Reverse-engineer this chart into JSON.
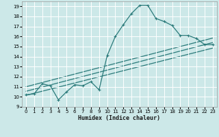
{
  "xlabel": "Humidex (Indice chaleur)",
  "bg_color": "#cce8e8",
  "grid_color": "#ffffff",
  "line_color": "#2a7a7a",
  "x_data": [
    0,
    1,
    2,
    3,
    4,
    5,
    6,
    7,
    8,
    9,
    10,
    11,
    12,
    13,
    14,
    15,
    16,
    17,
    18,
    19,
    20,
    21,
    22,
    23
  ],
  "y_main": [
    10.2,
    10.3,
    11.3,
    11.1,
    9.7,
    10.5,
    11.2,
    11.1,
    11.5,
    10.7,
    14.1,
    16.0,
    17.2,
    18.3,
    19.1,
    19.1,
    17.8,
    17.5,
    17.1,
    16.1,
    16.1,
    15.8,
    15.2,
    15.2
  ],
  "reg_lines": [
    [
      [
        0,
        23
      ],
      [
        10.15,
        14.85
      ]
    ],
    [
      [
        0,
        23
      ],
      [
        10.55,
        15.4
      ]
    ],
    [
      [
        0,
        23
      ],
      [
        11.0,
        15.85
      ]
    ]
  ],
  "xlim": [
    -0.5,
    23.5
  ],
  "ylim": [
    9,
    19.5
  ],
  "yticks": [
    9,
    10,
    11,
    12,
    13,
    14,
    15,
    16,
    17,
    18,
    19
  ],
  "xticks": [
    0,
    1,
    2,
    3,
    4,
    5,
    6,
    7,
    8,
    9,
    10,
    11,
    12,
    13,
    14,
    15,
    16,
    17,
    18,
    19,
    20,
    21,
    22,
    23
  ],
  "xlabel_fontsize": 6.0,
  "tick_fontsize": 5.0,
  "marker": "+",
  "markersize": 3.5,
  "linewidth": 0.9
}
